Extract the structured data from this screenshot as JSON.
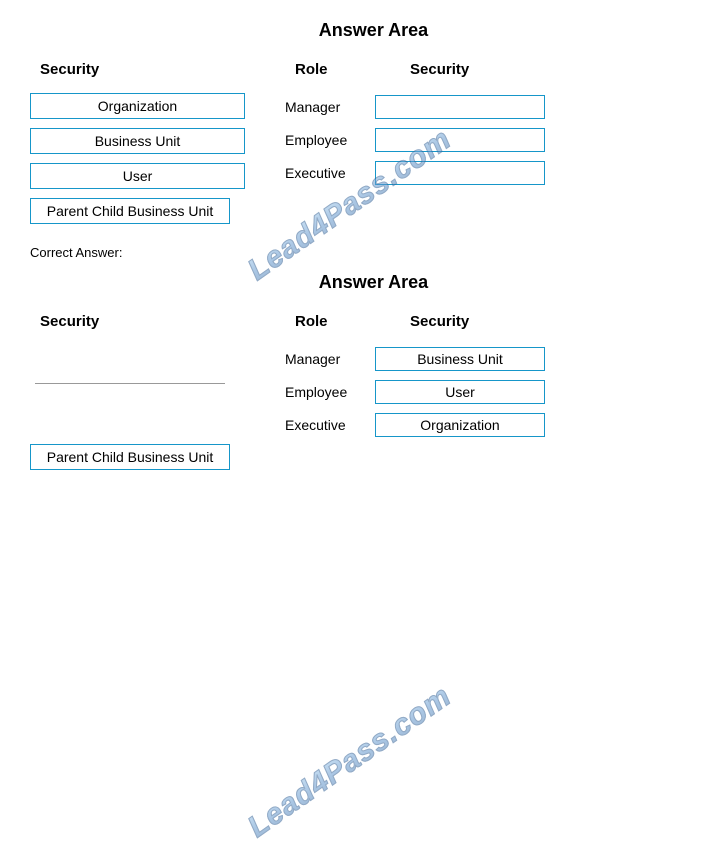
{
  "watermark_text": "Lead4Pass.com",
  "top": {
    "title": "Answer Area",
    "headers": {
      "left": "Security",
      "role": "Role",
      "right": "Security"
    },
    "left_boxes": [
      "Organization",
      "Business Unit",
      "User",
      "Parent Child Business Unit"
    ],
    "rows": [
      {
        "role": "Manager",
        "value": ""
      },
      {
        "role": "Employee",
        "value": ""
      },
      {
        "role": "Executive",
        "value": ""
      }
    ]
  },
  "correct_label": "Correct Answer:",
  "bottom": {
    "title": "Answer Area",
    "headers": {
      "left": "Security",
      "role": "Role",
      "right": "Security"
    },
    "left_remaining": "Parent Child Business Unit",
    "rows": [
      {
        "role": "Manager",
        "value": "Business Unit"
      },
      {
        "role": "Employee",
        "value": "User"
      },
      {
        "role": "Executive",
        "value": "Organization"
      }
    ]
  },
  "colors": {
    "box_border": "#1696c9",
    "background": "#ffffff",
    "text": "#000000"
  }
}
